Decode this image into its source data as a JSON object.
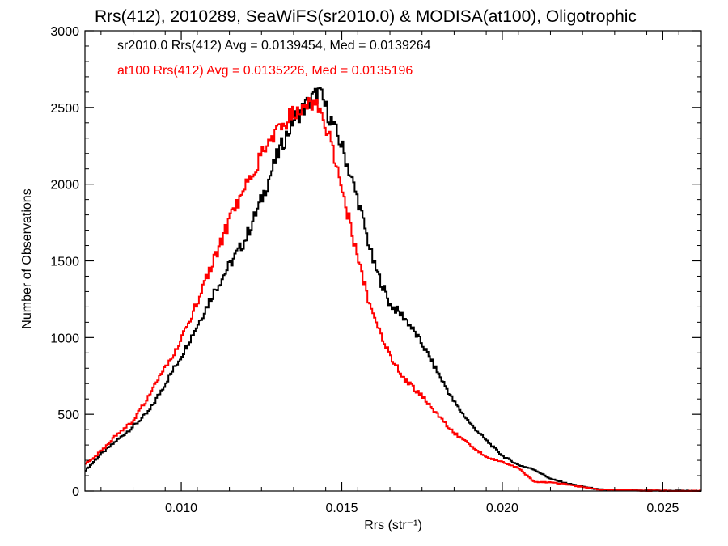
{
  "chart_data": {
    "type": "line",
    "title": "Rrs(412), 2010289, SeaWiFS(sr2010.0) & MODISA(at100), Oligotrophic",
    "xlabel": "Rrs (str⁻¹)",
    "ylabel": "Number of Observations",
    "xlim": [
      0.007,
      0.0262
    ],
    "ylim": [
      0,
      3000
    ],
    "xticks": [
      0.01,
      0.015,
      0.02,
      0.025
    ],
    "xtick_labels": [
      "0.010",
      "0.015",
      "0.020",
      "0.025"
    ],
    "yticks": [
      0,
      500,
      1000,
      1500,
      2000,
      2500,
      3000
    ],
    "ytick_labels": [
      "0",
      "500",
      "1000",
      "1500",
      "2000",
      "2500",
      "3000"
    ],
    "grid": false,
    "legend": "top-left",
    "series": [
      {
        "name": "sr2010.0",
        "annotation": "sr2010.0 Rrs(412) Avg = 0.0139454, Med = 0.0139264",
        "color": "#000000",
        "points": [
          [
            0.007,
            130
          ],
          [
            0.0075,
            240
          ],
          [
            0.008,
            330
          ],
          [
            0.0085,
            420
          ],
          [
            0.009,
            520
          ],
          [
            0.0095,
            700
          ],
          [
            0.01,
            880
          ],
          [
            0.0105,
            1080
          ],
          [
            0.011,
            1290
          ],
          [
            0.0115,
            1470
          ],
          [
            0.012,
            1640
          ],
          [
            0.0125,
            1900
          ],
          [
            0.013,
            2190
          ],
          [
            0.0135,
            2420
          ],
          [
            0.014,
            2540
          ],
          [
            0.0143,
            2600
          ],
          [
            0.0145,
            2500
          ],
          [
            0.015,
            2250
          ],
          [
            0.0155,
            1900
          ],
          [
            0.016,
            1480
          ],
          [
            0.0165,
            1220
          ],
          [
            0.017,
            1120
          ],
          [
            0.0175,
            960
          ],
          [
            0.018,
            770
          ],
          [
            0.0185,
            580
          ],
          [
            0.019,
            440
          ],
          [
            0.0195,
            330
          ],
          [
            0.02,
            230
          ],
          [
            0.0205,
            170
          ],
          [
            0.021,
            140
          ],
          [
            0.0215,
            80
          ],
          [
            0.022,
            50
          ],
          [
            0.0225,
            30
          ],
          [
            0.023,
            10
          ],
          [
            0.024,
            5
          ],
          [
            0.025,
            2
          ],
          [
            0.0262,
            0
          ]
        ]
      },
      {
        "name": "at100",
        "annotation": "at100 Rrs(412) Avg = 0.0135226, Med = 0.0135196",
        "color": "#ff0000",
        "points": [
          [
            0.007,
            170
          ],
          [
            0.0075,
            260
          ],
          [
            0.008,
            370
          ],
          [
            0.0085,
            460
          ],
          [
            0.009,
            620
          ],
          [
            0.0095,
            800
          ],
          [
            0.01,
            980
          ],
          [
            0.0105,
            1240
          ],
          [
            0.011,
            1490
          ],
          [
            0.0115,
            1760
          ],
          [
            0.012,
            2000
          ],
          [
            0.0125,
            2190
          ],
          [
            0.013,
            2370
          ],
          [
            0.0135,
            2460
          ],
          [
            0.014,
            2540
          ],
          [
            0.0142,
            2520
          ],
          [
            0.0145,
            2400
          ],
          [
            0.015,
            1980
          ],
          [
            0.0155,
            1510
          ],
          [
            0.016,
            1120
          ],
          [
            0.0165,
            880
          ],
          [
            0.017,
            720
          ],
          [
            0.0175,
            620
          ],
          [
            0.018,
            490
          ],
          [
            0.0185,
            380
          ],
          [
            0.019,
            300
          ],
          [
            0.0195,
            220
          ],
          [
            0.02,
            190
          ],
          [
            0.0205,
            150
          ],
          [
            0.021,
            60
          ],
          [
            0.0215,
            55
          ],
          [
            0.022,
            45
          ],
          [
            0.0225,
            25
          ],
          [
            0.023,
            10
          ],
          [
            0.024,
            4
          ],
          [
            0.025,
            1
          ],
          [
            0.0262,
            0
          ]
        ]
      }
    ]
  }
}
